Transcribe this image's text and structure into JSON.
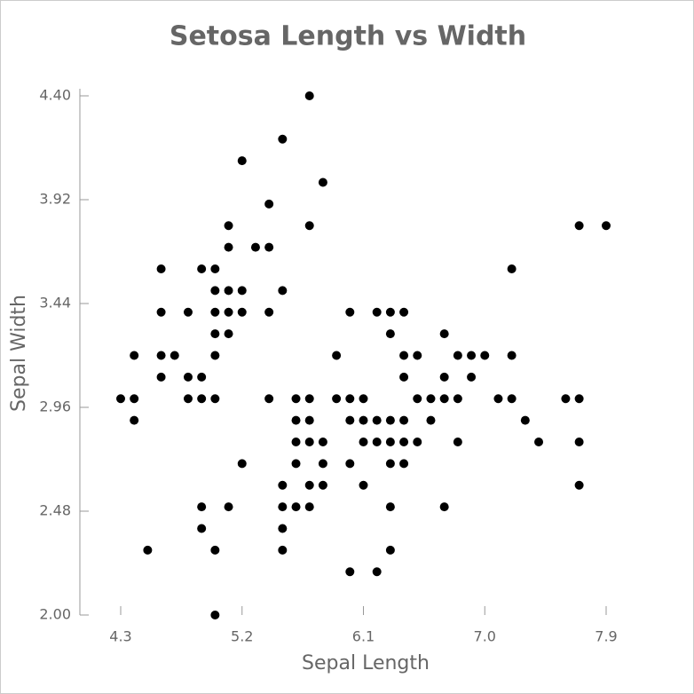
{
  "chart_data": {
    "type": "scatter",
    "title": "Setosa Length vs Width",
    "x_label": "Sepal Length",
    "y_label": "Sepal Width",
    "color": "#000000",
    "x": [
      5.7,
      5.5,
      5.2,
      5.8,
      5.4,
      5.1,
      5.7,
      7.7,
      7.9,
      5.1,
      5.3,
      5.4,
      4.6,
      4.9,
      5.0,
      7.2,
      5.0,
      5.1,
      5.2,
      5.5,
      4.6,
      4.8,
      5.0,
      5.1,
      5.2,
      5.4,
      6.0,
      6.2,
      6.3,
      6.4,
      5.0,
      5.1,
      6.3,
      6.7,
      4.4,
      4.6,
      4.7,
      5.0,
      5.9,
      6.4,
      6.5,
      6.8,
      6.9,
      7.0,
      7.2,
      4.6,
      4.8,
      4.9,
      6.4,
      6.7,
      6.9,
      4.3,
      4.4,
      4.8,
      4.9,
      5.0,
      5.4,
      5.6,
      5.7,
      5.9,
      6.0,
      6.1,
      6.5,
      6.6,
      6.7,
      6.8,
      7.1,
      7.2,
      7.6,
      7.7,
      4.4,
      5.6,
      5.7,
      6.0,
      6.1,
      6.2,
      6.3,
      6.4,
      6.6,
      7.3,
      5.6,
      5.7,
      5.8,
      6.1,
      6.2,
      6.3,
      6.4,
      6.5,
      6.8,
      7.4,
      7.7,
      5.2,
      5.6,
      5.8,
      6.0,
      6.3,
      6.4,
      5.5,
      5.7,
      5.8,
      6.1,
      7.7,
      4.9,
      5.1,
      5.5,
      5.6,
      5.7,
      6.3,
      6.7,
      4.9,
      5.5,
      4.5,
      5.0,
      5.5,
      6.3,
      6.0,
      6.2,
      5.0
    ],
    "values": [
      4.4,
      4.2,
      4.1,
      4.0,
      3.9,
      3.8,
      3.8,
      3.8,
      3.8,
      3.7,
      3.7,
      3.7,
      3.6,
      3.6,
      3.6,
      3.6,
      3.5,
      3.5,
      3.5,
      3.5,
      3.4,
      3.4,
      3.4,
      3.4,
      3.4,
      3.4,
      3.4,
      3.4,
      3.4,
      3.4,
      3.3,
      3.3,
      3.3,
      3.3,
      3.2,
      3.2,
      3.2,
      3.2,
      3.2,
      3.2,
      3.2,
      3.2,
      3.2,
      3.2,
      3.2,
      3.1,
      3.1,
      3.1,
      3.1,
      3.1,
      3.1,
      3.0,
      3.0,
      3.0,
      3.0,
      3.0,
      3.0,
      3.0,
      3.0,
      3.0,
      3.0,
      3.0,
      3.0,
      3.0,
      3.0,
      3.0,
      3.0,
      3.0,
      3.0,
      3.0,
      2.9,
      2.9,
      2.9,
      2.9,
      2.9,
      2.9,
      2.9,
      2.9,
      2.9,
      2.9,
      2.8,
      2.8,
      2.8,
      2.8,
      2.8,
      2.8,
      2.8,
      2.8,
      2.8,
      2.8,
      2.8,
      2.7,
      2.7,
      2.7,
      2.7,
      2.7,
      2.7,
      2.6,
      2.6,
      2.6,
      2.6,
      2.6,
      2.5,
      2.5,
      2.5,
      2.5,
      2.5,
      2.5,
      2.5,
      2.4,
      2.4,
      2.3,
      2.3,
      2.3,
      2.3,
      2.2,
      2.2,
      2.0
    ],
    "xlim": [
      4.3,
      7.9
    ],
    "ylim": [
      2.0,
      4.4
    ],
    "xticks": [
      4.3,
      5.2,
      6.1,
      {
        "value": 7,
        "label": "7.0"
      },
      7.9
    ],
    "yticks": [
      {
        "value": 2,
        "label": "2.00"
      },
      2.48,
      2.96,
      3.44,
      3.92,
      {
        "value": 4.4,
        "label": "4.40"
      }
    ]
  }
}
